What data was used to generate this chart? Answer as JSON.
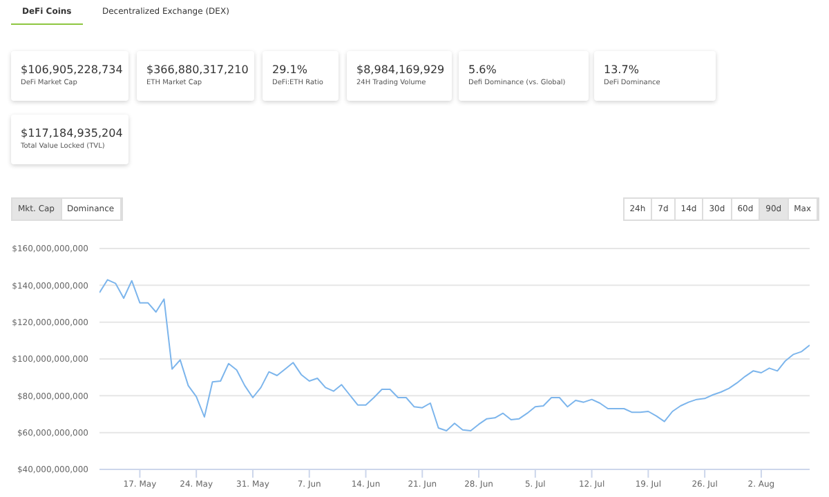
{
  "chart_data": [
    {
      "type": "other",
      "annotations": [
        "DeFi Coins",
        "Decentralized Exchange (DEX)"
      ],
      "categories": [
        "DeFi Market Cap",
        "ETH Market Cap",
        "DeFi:ETH Ratio",
        "24H Trading Volume",
        "Defi Dominance (vs. Global)",
        "DeFi Dominance",
        "Total Value Locked (TVL)"
      ],
      "value_labels": [
        "$106,905,228,734",
        "$366,880,317,210",
        "29.1%",
        "$8,984,169,929",
        "5.6%",
        "13.7%",
        "$117,184,935,204"
      ]
    },
    {
      "type": "line",
      "color": "#7cb5ec",
      "grid": "y",
      "annotations": [
        "Mkt. Cap",
        "Dominance",
        "24h",
        "7d",
        "14d",
        "30d",
        "60d",
        "90d",
        "Max"
      ],
      "x": [
        "--05-12",
        "--05-13",
        "--05-14",
        "--05-15",
        "--05-16",
        "--05-17",
        "--05-18",
        "--05-19",
        "--05-20",
        "--05-21",
        "--05-22",
        "--05-23",
        "--05-24",
        "--05-25",
        "--05-26",
        "--05-27",
        "--05-28",
        "--05-29",
        "--05-30",
        "--05-31",
        "--06-01",
        "--06-02",
        "--06-03",
        "--06-04",
        "--06-05",
        "--06-06",
        "--06-07",
        "--06-08",
        "--06-09",
        "--06-10",
        "--06-11",
        "--06-12",
        "--06-13",
        "--06-14",
        "--06-15",
        "--06-16",
        "--06-17",
        "--06-18",
        "--06-19",
        "--06-20",
        "--06-21",
        "--06-22",
        "--06-23",
        "--06-24",
        "--06-25",
        "--06-26",
        "--06-27",
        "--06-28",
        "--06-29",
        "--06-30",
        "--07-01",
        "--07-02",
        "--07-03",
        "--07-04",
        "--07-05",
        "--07-06",
        "--07-07",
        "--07-08",
        "--07-09",
        "--07-10",
        "--07-11",
        "--07-12",
        "--07-13",
        "--07-14",
        "--07-15",
        "--07-16",
        "--07-17",
        "--07-18",
        "--07-19",
        "--07-20",
        "--07-21",
        "--07-22",
        "--07-23",
        "--07-24",
        "--07-25",
        "--07-26",
        "--07-27",
        "--07-28",
        "--07-29",
        "--07-30",
        "--07-31",
        "--08-01",
        "--08-02",
        "--08-03",
        "--08-04",
        "--08-05",
        "--08-06",
        "--08-07",
        "--08-08"
      ],
      "values": [
        136000000000,
        143000000000,
        141000000000,
        133000000000,
        142500000000,
        130500000000,
        130500000000,
        125500000000,
        132500000000,
        94500000000,
        99500000000,
        85500000000,
        79500000000,
        68500000000,
        87500000000,
        88000000000,
        97500000000,
        94000000000,
        85500000000,
        79000000000,
        84500000000,
        93000000000,
        91000000000,
        94500000000,
        98000000000,
        91500000000,
        88000000000,
        89500000000,
        84500000000,
        82500000000,
        86000000000,
        80500000000,
        75000000000,
        75000000000,
        79000000000,
        83500000000,
        83500000000,
        79000000000,
        79000000000,
        74000000000,
        73500000000,
        76000000000,
        62500000000,
        61000000000,
        65000000000,
        61500000000,
        61000000000,
        64500000000,
        67500000000,
        68000000000,
        70500000000,
        67000000000,
        67500000000,
        70500000000,
        74000000000,
        74500000000,
        79000000000,
        79000000000,
        74000000000,
        77500000000,
        76500000000,
        78000000000,
        76000000000,
        73000000000,
        73000000000,
        73000000000,
        71000000000,
        71000000000,
        71500000000,
        69000000000,
        66000000000,
        71500000000,
        74500000000,
        76500000000,
        78000000000,
        78500000000,
        80500000000,
        82000000000,
        84000000000,
        87000000000,
        90500000000,
        93500000000,
        92500000000,
        95000000000,
        93500000000,
        99000000000,
        102500000000,
        104000000000,
        107500000000
      ],
      "xlim": [
        "--05-12",
        "--08-08"
      ],
      "xticks": [
        {
          "value": "--05-17",
          "label": "17. May"
        },
        {
          "value": "--05-24",
          "label": "24. May"
        },
        {
          "value": "--05-31",
          "label": "31. May"
        },
        {
          "value": "--06-07",
          "label": "7. Jun"
        },
        {
          "value": "--06-14",
          "label": "14. Jun"
        },
        {
          "value": "--06-21",
          "label": "21. Jun"
        },
        {
          "value": "--06-28",
          "label": "28. Jun"
        },
        {
          "value": "--07-05",
          "label": "5. Jul"
        },
        {
          "value": "--07-12",
          "label": "12. Jul"
        },
        {
          "value": "--07-19",
          "label": "19. Jul"
        },
        {
          "value": "--07-26",
          "label": "26. Jul"
        },
        {
          "value": "--08-02",
          "label": "2. Aug"
        }
      ],
      "ylim": [
        40000000000,
        160000000000
      ],
      "yticks": [
        {
          "value": 40000000000,
          "label": "$40,000,000,000"
        },
        {
          "value": 60000000000,
          "label": "$60,000,000,000"
        },
        {
          "value": 80000000000,
          "label": "$80,000,000,000"
        },
        {
          "value": 100000000000,
          "label": "$100,000,000,000"
        },
        {
          "value": 120000000000,
          "label": "$120,000,000,000"
        },
        {
          "value": 140000000000,
          "label": "$140,000,000,000"
        },
        {
          "value": 160000000000,
          "label": "$160,000,000,000"
        }
      ]
    }
  ]
}
